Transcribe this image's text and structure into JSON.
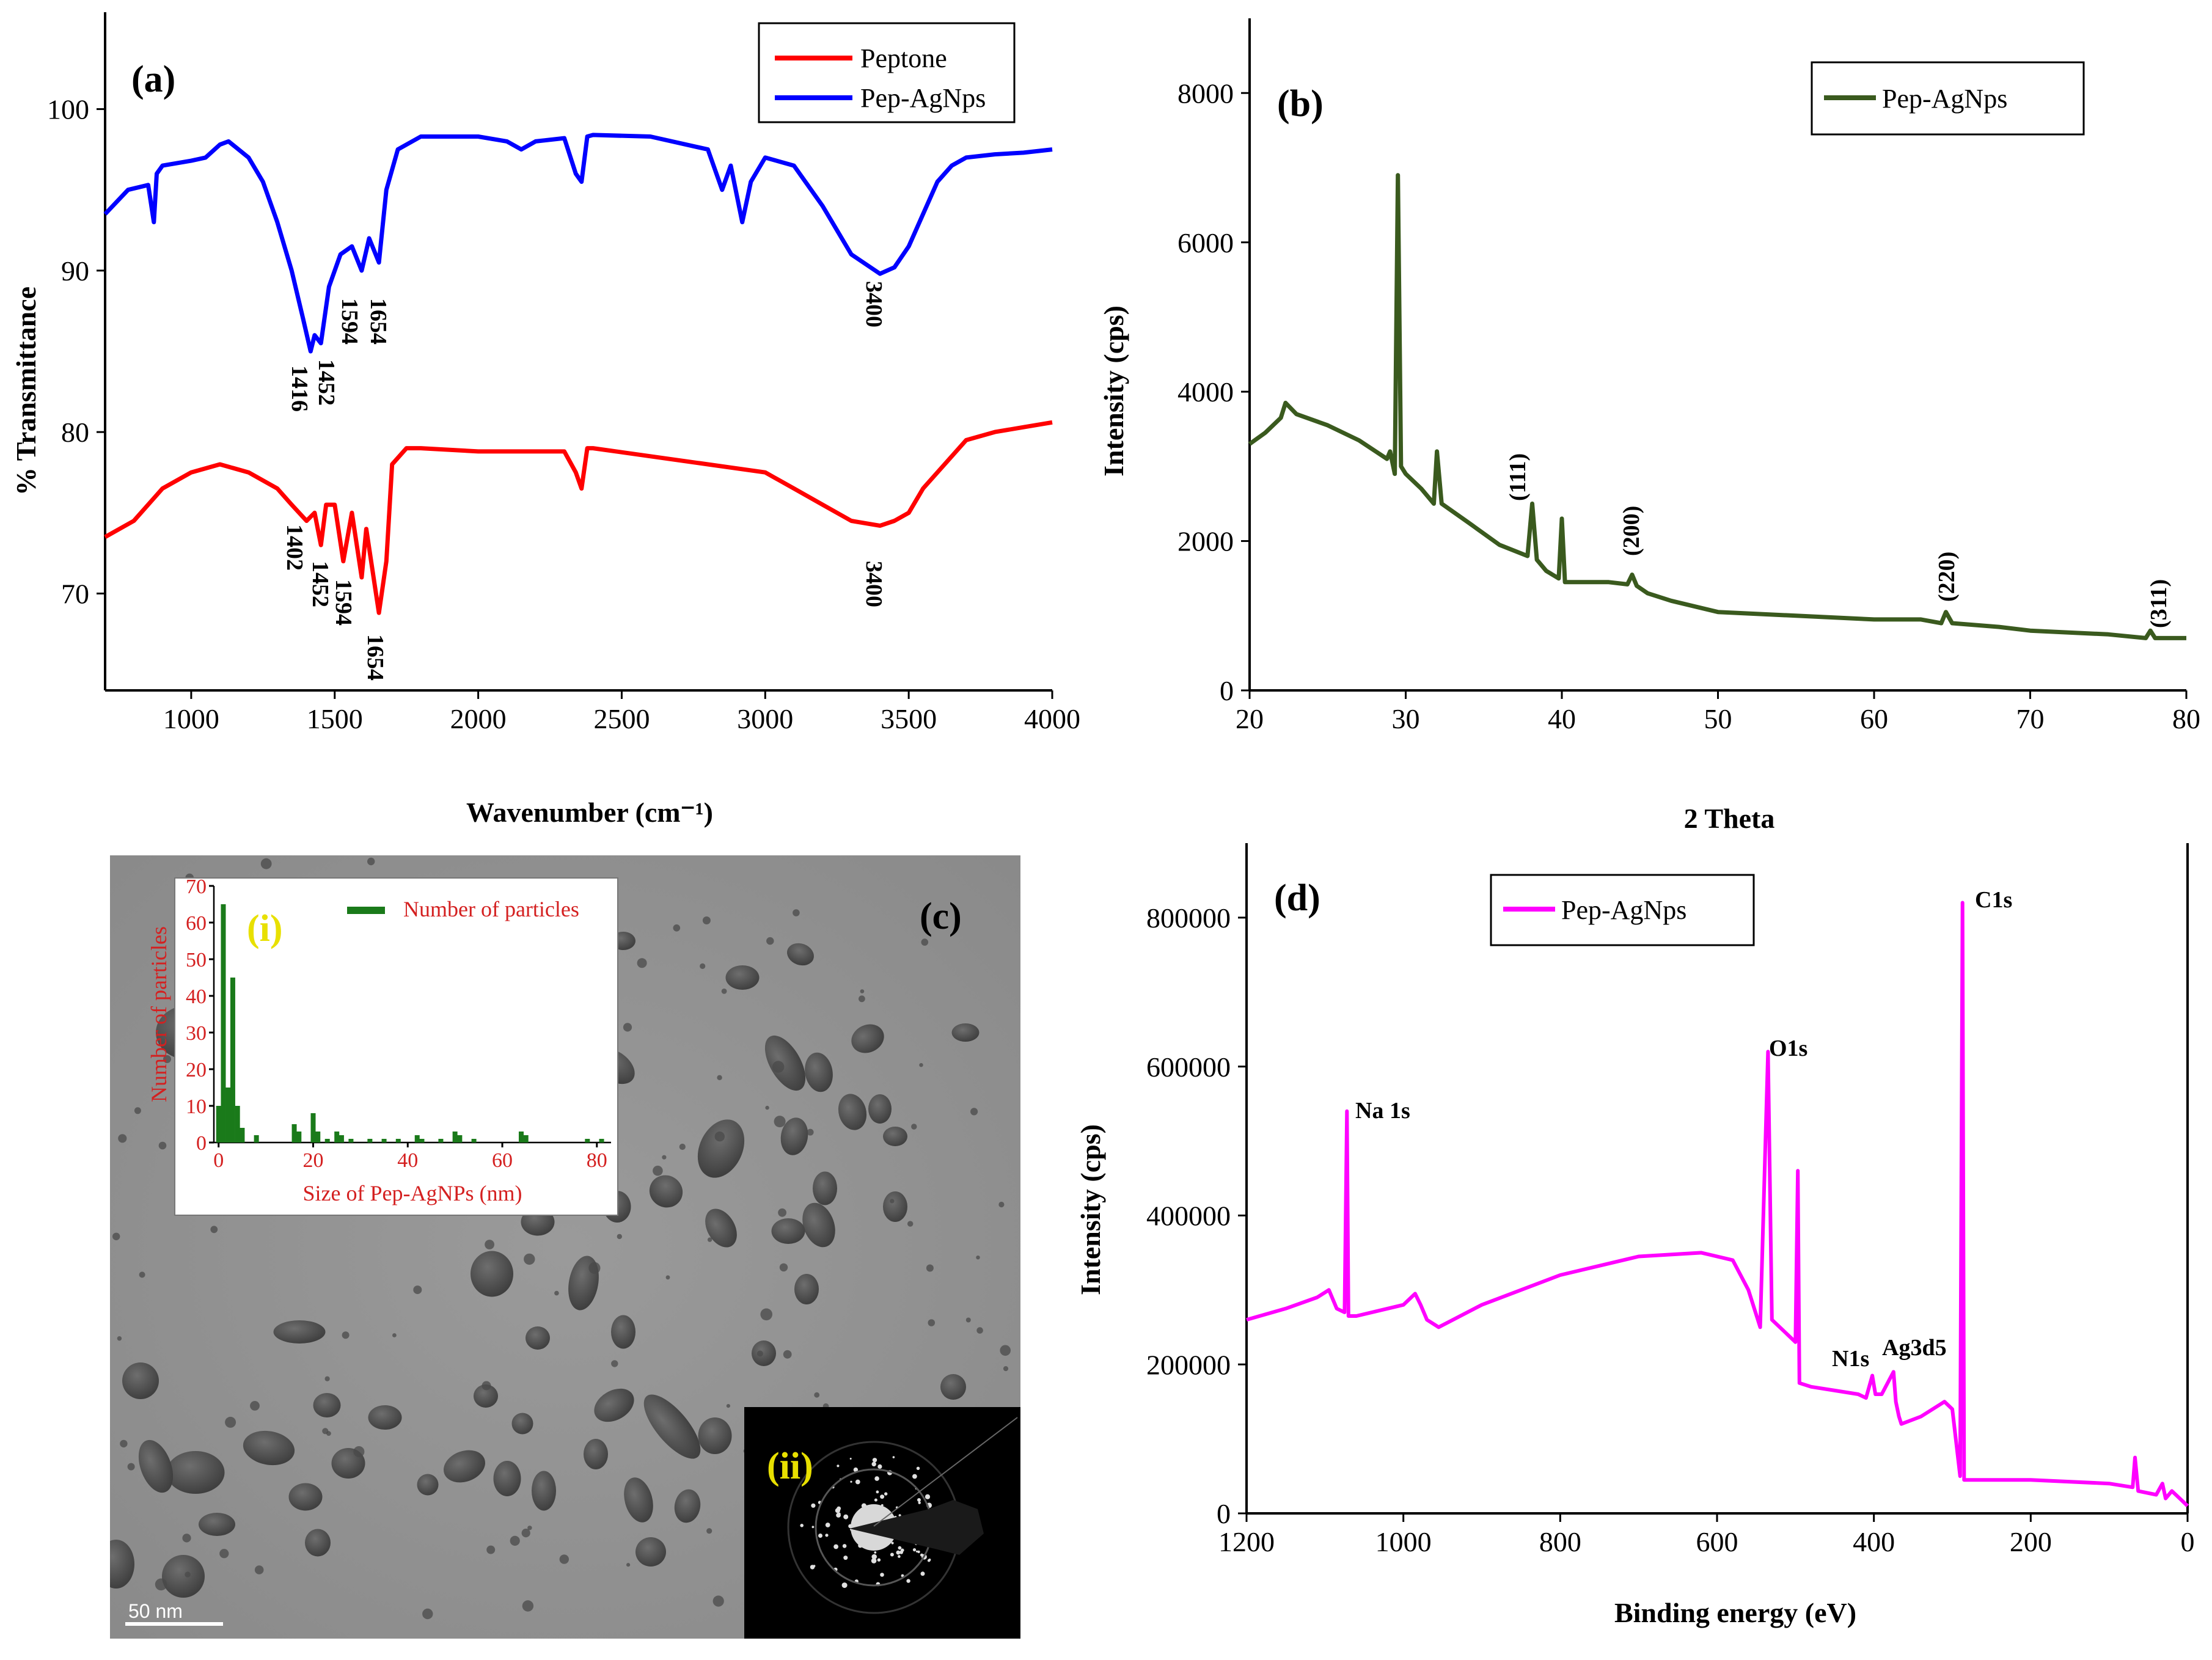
{
  "chart_data": [
    {
      "panel": "(a)",
      "type": "line",
      "xlabel": "Wavenumber (cm⁻¹)",
      "ylabel": "% Transmittance",
      "xlim": [
        700,
        4000
      ],
      "ylim": [
        64,
        106
      ],
      "xticks": [
        1000,
        1500,
        2000,
        2500,
        3000,
        3500,
        4000
      ],
      "yticks": [
        70,
        80,
        90,
        100
      ],
      "legend_position": "top-right",
      "series": [
        {
          "name": "Peptone",
          "color": "#ff0000",
          "x": [
            700,
            800,
            900,
            1000,
            1100,
            1200,
            1300,
            1350,
            1402,
            1430,
            1452,
            1470,
            1500,
            1530,
            1560,
            1594,
            1610,
            1654,
            1680,
            1700,
            1750,
            1800,
            2000,
            2200,
            2300,
            2340,
            2360,
            2380,
            2400,
            2600,
            2800,
            3000,
            3100,
            3200,
            3300,
            3400,
            3450,
            3500,
            3550,
            3600,
            3650,
            3700,
            3800,
            3900,
            4000
          ],
          "y": [
            73.5,
            74.5,
            76.5,
            77.5,
            78,
            77.5,
            76.5,
            75.5,
            74.5,
            75,
            73,
            75.5,
            75.5,
            72,
            75,
            71,
            74,
            68.8,
            72,
            78,
            79,
            79,
            78.8,
            78.8,
            78.8,
            77.5,
            76.5,
            79,
            79,
            78.5,
            78,
            77.5,
            76.5,
            75.5,
            74.5,
            74.2,
            74.5,
            75,
            76.5,
            77.5,
            78.5,
            79.5,
            80,
            80.3,
            80.6
          ]
        },
        {
          "name": "Pep-AgNps",
          "color": "#0000ff",
          "x": [
            700,
            780,
            850,
            870,
            880,
            900,
            1000,
            1050,
            1100,
            1130,
            1200,
            1250,
            1300,
            1350,
            1390,
            1416,
            1430,
            1452,
            1480,
            1520,
            1560,
            1594,
            1620,
            1654,
            1680,
            1720,
            1800,
            2000,
            2100,
            2150,
            2200,
            2300,
            2340,
            2360,
            2380,
            2400,
            2600,
            2800,
            2850,
            2880,
            2920,
            2950,
            3000,
            3100,
            3200,
            3300,
            3400,
            3450,
            3500,
            3550,
            3600,
            3650,
            3700,
            3800,
            3900,
            4000
          ],
          "y": [
            93.5,
            95,
            95.3,
            93,
            96,
            96.5,
            96.8,
            97,
            97.8,
            98,
            97,
            95.5,
            93,
            90,
            87,
            85,
            86,
            85.5,
            89,
            91,
            91.5,
            90,
            92,
            90.5,
            95,
            97.5,
            98.3,
            98.3,
            98,
            97.5,
            98,
            98.2,
            96,
            95.5,
            98.3,
            98.4,
            98.3,
            97.5,
            95,
            96.5,
            93,
            95.5,
            97,
            96.5,
            94,
            91,
            89.8,
            90.2,
            91.5,
            93.5,
            95.5,
            96.5,
            97,
            97.2,
            97.3,
            97.5
          ]
        }
      ],
      "annotations": {
        "pep_agnps": [
          "1416",
          "1452",
          "1594",
          "1654",
          "3400"
        ],
        "peptone": [
          "1402",
          "1452",
          "1594",
          "1654",
          "3400"
        ]
      }
    },
    {
      "panel": "(b)",
      "type": "line",
      "xlabel": "2 Theta",
      "ylabel": "Intensity (cps)",
      "xlim": [
        20,
        80
      ],
      "ylim": [
        0,
        9000
      ],
      "xticks": [
        20,
        30,
        40,
        50,
        60,
        70,
        80
      ],
      "yticks": [
        0,
        2000,
        4000,
        6000,
        8000
      ],
      "legend_position": "top-right",
      "series": [
        {
          "name": "Pep-AgNps",
          "color": "#3a5a1e",
          "x": [
            20,
            21,
            22,
            22.3,
            23,
            25,
            27,
            28.8,
            29,
            29.3,
            29.5,
            29.7,
            30,
            31,
            31.8,
            32,
            32.3,
            34,
            36,
            37.8,
            38.1,
            38.4,
            39,
            39.8,
            40,
            40.2,
            41,
            43,
            44.2,
            44.5,
            44.8,
            45.5,
            47,
            50,
            55,
            60,
            63,
            64.3,
            64.6,
            65,
            68,
            70,
            75,
            77.4,
            77.7,
            78,
            80
          ],
          "y": [
            3300,
            3450,
            3650,
            3850,
            3700,
            3550,
            3350,
            3100,
            3200,
            2900,
            6900,
            3000,
            2900,
            2700,
            2500,
            3200,
            2500,
            2250,
            1950,
            1800,
            2500,
            1750,
            1600,
            1500,
            2300,
            1450,
            1450,
            1450,
            1420,
            1550,
            1400,
            1300,
            1200,
            1050,
            1000,
            950,
            950,
            900,
            1050,
            900,
            850,
            800,
            750,
            700,
            800,
            700,
            700
          ]
        }
      ],
      "annotations": [
        "(111)",
        "(200)",
        "(220)",
        "(311)"
      ]
    },
    {
      "panel": "(c)",
      "type": "bar",
      "title": "(i)",
      "xlabel": "Size of Pep-AgNPs  (nm)",
      "ylabel": "Number of particles",
      "legend": "Number of particles",
      "legend_position": "top-right",
      "xlim": [
        -1,
        83
      ],
      "ylim": [
        0,
        70
      ],
      "xticks": [
        0,
        20,
        40,
        60,
        80
      ],
      "yticks": [
        0,
        10,
        20,
        30,
        40,
        50,
        60,
        70
      ],
      "x": [
        0,
        1,
        2,
        3,
        4,
        5,
        8,
        16,
        17,
        20,
        21,
        23,
        25,
        26,
        28,
        32,
        35,
        38,
        42,
        43,
        47,
        50,
        51,
        54,
        64,
        65,
        78,
        81
      ],
      "values": [
        10,
        65,
        15,
        45,
        10,
        4,
        2,
        5,
        3,
        8,
        3,
        1,
        3,
        2,
        1,
        1,
        1,
        1,
        2,
        1,
        1,
        3,
        2,
        1,
        3,
        2,
        1,
        1
      ]
    },
    {
      "panel": "(d)",
      "type": "line",
      "xlabel": "Binding energy (eV)",
      "ylabel": "Intensity (cps)",
      "xlim": [
        1200,
        0
      ],
      "ylim": [
        0,
        900000
      ],
      "xticks": [
        1200,
        1000,
        800,
        600,
        400,
        200,
        0
      ],
      "yticks": [
        0,
        200000,
        400000,
        600000,
        800000
      ],
      "legend_position": "top-left",
      "series": [
        {
          "name": "Pep-AgNps",
          "color": "#ff00ff",
          "x": [
            1200,
            1150,
            1110,
            1095,
            1085,
            1075,
            1072,
            1070,
            1060,
            1000,
            985,
            978,
            970,
            955,
            900,
            800,
            700,
            620,
            580,
            560,
            545,
            535,
            532,
            530,
            520,
            500,
            497,
            495,
            480,
            450,
            420,
            410,
            402,
            398,
            390,
            380,
            375,
            372,
            368,
            365,
            340,
            310,
            300,
            290,
            287,
            285,
            280,
            200,
            100,
            70,
            67,
            63,
            40,
            32,
            28,
            20,
            10,
            0
          ],
          "y": [
            260000,
            275000,
            290000,
            300000,
            275000,
            270000,
            540000,
            265000,
            265000,
            280000,
            295000,
            280000,
            260000,
            250000,
            280000,
            320000,
            345000,
            350000,
            340000,
            300000,
            250000,
            620000,
            400000,
            260000,
            250000,
            230000,
            460000,
            175000,
            170000,
            165000,
            160000,
            155000,
            185000,
            160000,
            160000,
            180000,
            190000,
            150000,
            130000,
            120000,
            130000,
            150000,
            140000,
            50000,
            820000,
            45000,
            45000,
            45000,
            40000,
            35000,
            75000,
            30000,
            25000,
            40000,
            20000,
            30000,
            20000,
            10000
          ]
        }
      ],
      "annotations": [
        "Na 1s",
        "O1s",
        "C1s",
        "N1s",
        "Ag3d5"
      ]
    }
  ],
  "images": {
    "tem_label": "(c)",
    "scale_bar": "50 nm",
    "saed_label": "(ii)"
  }
}
